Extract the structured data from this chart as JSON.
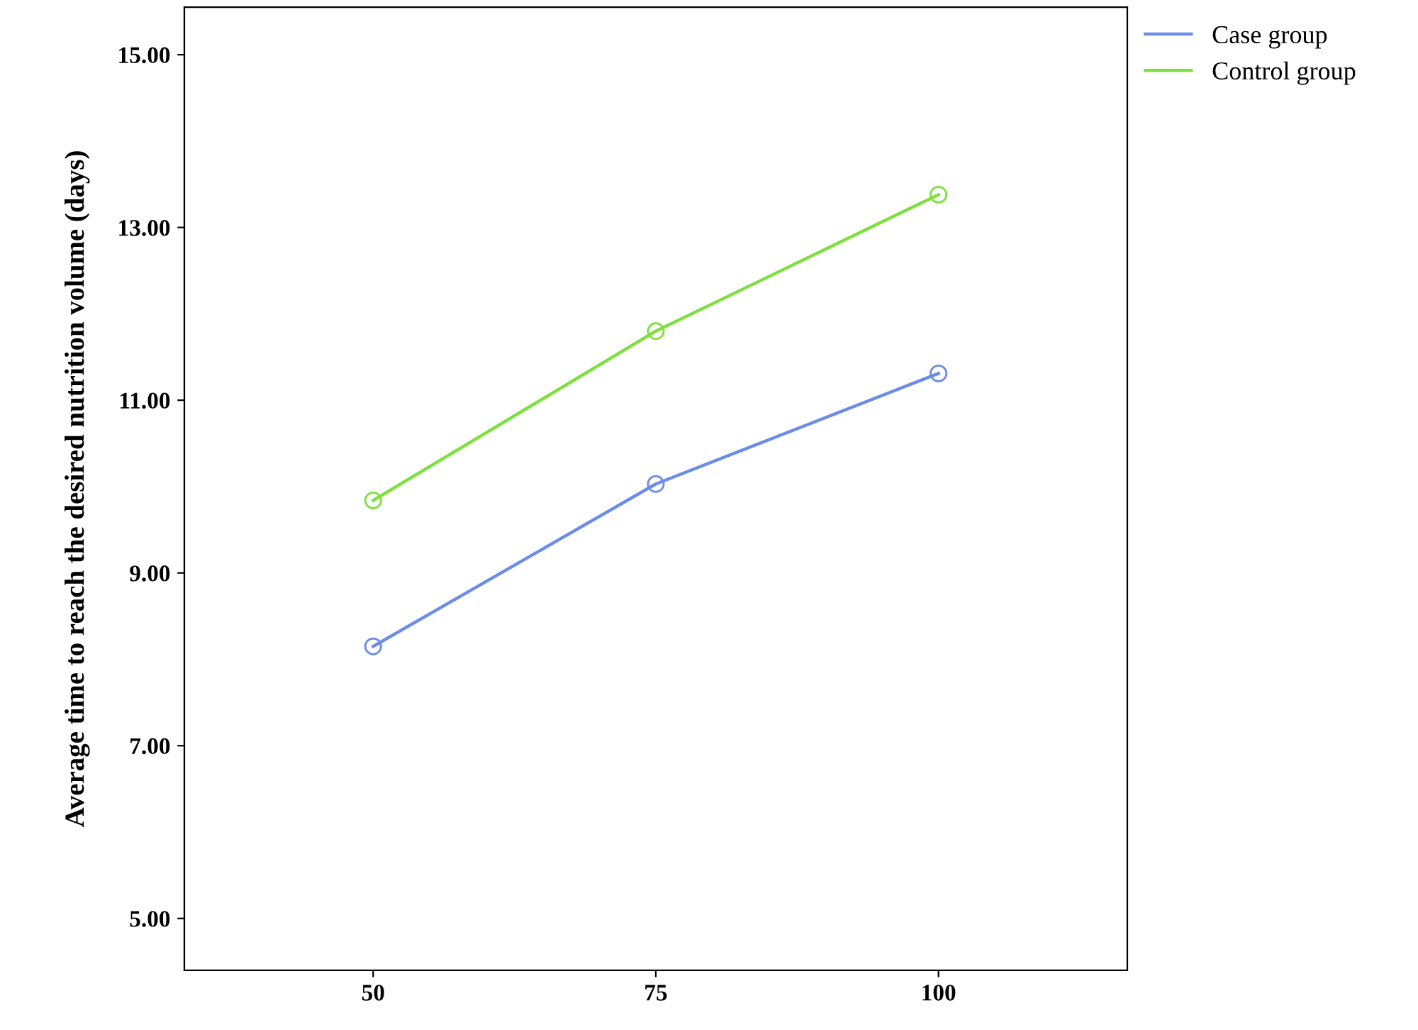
{
  "chart_data": {
    "type": "line",
    "ylabel": "Average time to reach the desired nutrition volume (days)",
    "x": [
      50,
      75,
      100
    ],
    "series": [
      {
        "name": "Case group",
        "color": "#6b8ce8",
        "values": [
          8.15,
          10.03,
          11.31
        ]
      },
      {
        "name": "Control group",
        "color": "#7ee03c",
        "values": [
          9.84,
          11.8,
          13.38
        ]
      }
    ],
    "xlim": [
      33.3,
      116.7
    ],
    "xticks": [
      50,
      75,
      100
    ],
    "ylim": [
      4.4,
      15.55
    ],
    "yticks": [
      {
        "value": 5,
        "label": "5.00"
      },
      {
        "value": 7,
        "label": "7.00"
      },
      {
        "value": 9,
        "label": "9.00"
      },
      {
        "value": 11,
        "label": "11.00"
      },
      {
        "value": 13,
        "label": "13.00"
      },
      {
        "value": 15,
        "label": "15.00"
      }
    ],
    "marker": "circle",
    "line_style": "solid",
    "legend": "top right",
    "grid": false
  }
}
